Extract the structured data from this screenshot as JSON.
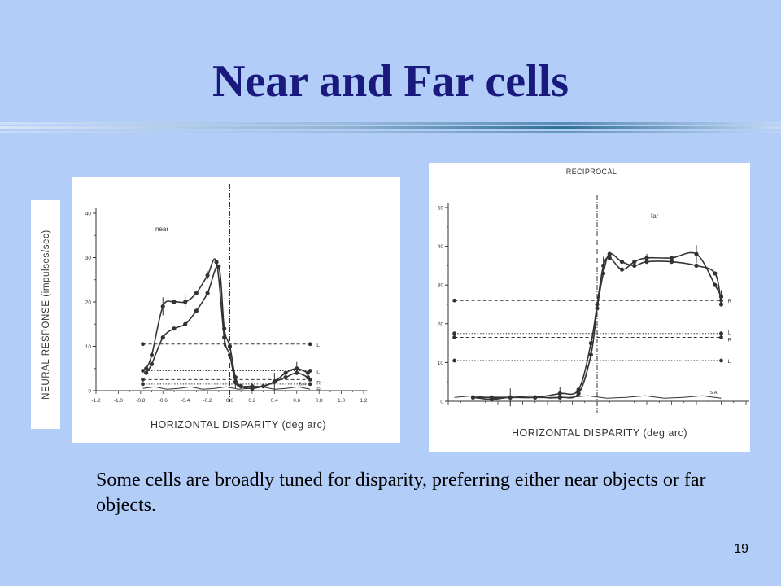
{
  "title": "Near and Far cells",
  "caption": "Some cells are broadly tuned for disparity, preferring either near objects or far objects.",
  "page_number": "19",
  "colors": {
    "background": "#b3cdf9",
    "title": "#1a1a7e",
    "divider": "#2e6f95"
  },
  "chart_data": [
    {
      "type": "line",
      "panel_label": "near",
      "ylabel": "NEURAL RESPONSE (impulses/sec)",
      "xlabel": "HORIZONTAL DISPARITY (deg arc)",
      "xlim": [
        -1.2,
        1.2
      ],
      "ylim": [
        0,
        40
      ],
      "x_ticks": [
        "-1.2",
        "-1.0",
        "-0.8",
        "-0.6",
        "-0.4",
        "-0.2",
        "0.0",
        "0.2",
        "0.4",
        "0.6",
        "0.8",
        "1.0",
        "1.2"
      ],
      "y_ticks": [
        "0",
        "10",
        "20",
        "30",
        "40"
      ],
      "series": [
        {
          "x": [
            -0.75,
            -0.7,
            -0.6,
            -0.5,
            -0.4,
            -0.3,
            -0.2,
            -0.12,
            -0.05,
            0.0,
            0.05,
            0.1,
            0.2,
            0.3,
            0.4,
            0.5,
            0.6,
            0.7
          ],
          "y": [
            5,
            8,
            19,
            20,
            20,
            22,
            26,
            29,
            12,
            8,
            2,
            1,
            1,
            1,
            2,
            4,
            5,
            4
          ]
        },
        {
          "x": [
            -0.75,
            -0.7,
            -0.6,
            -0.5,
            -0.4,
            -0.3,
            -0.2,
            -0.1,
            -0.05,
            0.0,
            0.05,
            0.1,
            0.2,
            0.3,
            0.4,
            0.5,
            0.6,
            0.7
          ],
          "y": [
            4,
            6,
            12,
            14,
            15,
            18,
            22,
            28,
            14,
            10,
            3,
            1,
            0.5,
            1,
            2,
            3,
            4,
            3
          ]
        }
      ],
      "monocular_levels": [
        {
          "label": "L",
          "value": 10.5
        },
        {
          "label": "L",
          "value": 4.5
        },
        {
          "label": "R",
          "value": 2.5
        },
        {
          "label": "R",
          "value": 1.5
        }
      ],
      "spontaneous": {
        "label": "S.A",
        "value": 0.5
      }
    },
    {
      "type": "line",
      "title": "RECIPROCAL",
      "panel_label": "far",
      "xlabel": "HORIZONTAL DISPARITY (deg arc)",
      "xlim": [
        -1.2,
        1.2
      ],
      "ylim": [
        0,
        50
      ],
      "y_ticks": [
        "0",
        "10",
        "20",
        "30",
        "40",
        "50"
      ],
      "series": [
        {
          "x": [
            -1.0,
            -0.85,
            -0.7,
            -0.5,
            -0.3,
            -0.15,
            -0.05,
            0.0,
            0.05,
            0.1,
            0.2,
            0.3,
            0.4,
            0.6,
            0.8,
            0.95,
            1.0
          ],
          "y": [
            1,
            1,
            1,
            1,
            2,
            3,
            15,
            25,
            35,
            37,
            34,
            36,
            37,
            37,
            38,
            30,
            27
          ]
        },
        {
          "x": [
            -1.0,
            -0.85,
            -0.7,
            -0.5,
            -0.3,
            -0.15,
            -0.05,
            0.0,
            0.05,
            0.1,
            0.2,
            0.3,
            0.4,
            0.6,
            0.8,
            0.95,
            1.0
          ],
          "y": [
            1,
            0.5,
            1,
            1,
            1,
            2,
            12,
            24,
            33,
            38,
            36,
            35,
            36,
            36,
            35,
            33,
            25
          ]
        }
      ],
      "monocular_levels": [
        {
          "label": "R",
          "value": 26
        },
        {
          "label": "L",
          "value": 17.5
        },
        {
          "label": "R",
          "value": 16.5
        },
        {
          "label": "L",
          "value": 10.5
        }
      ],
      "spontaneous": {
        "label": "S.A",
        "value": 1
      }
    }
  ]
}
